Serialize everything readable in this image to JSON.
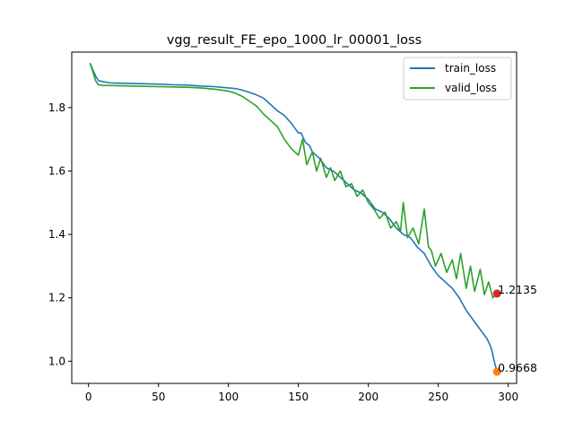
{
  "chart_data": {
    "type": "line",
    "title": "vgg_result_FE_epo_1000_lr_00001_loss",
    "xlabel": "",
    "ylabel": "",
    "xlim": [
      -12,
      306
    ],
    "ylim": [
      0.93,
      1.975
    ],
    "xticks": [
      0,
      50,
      100,
      150,
      200,
      250,
      300
    ],
    "yticks": [
      1.0,
      1.2,
      1.4,
      1.6,
      1.8
    ],
    "ytick_labels": [
      "1.0",
      "1.2",
      "1.4",
      "1.6",
      "1.8"
    ],
    "legend": {
      "position": "top-right",
      "entries": [
        "train_loss",
        "valid_loss"
      ]
    },
    "colors": {
      "train_loss": "#1f77b4",
      "valid_loss": "#2ca02c",
      "train_marker": "#ff7f0e",
      "valid_marker": "#d62728"
    },
    "series": [
      {
        "name": "train_loss",
        "color": "#1f77b4",
        "x": [
          1,
          3,
          5,
          7,
          10,
          15,
          20,
          30,
          40,
          50,
          60,
          70,
          80,
          90,
          100,
          105,
          110,
          115,
          120,
          125,
          130,
          135,
          140,
          145,
          150,
          152,
          155,
          158,
          160,
          165,
          170,
          175,
          180,
          185,
          190,
          195,
          200,
          205,
          210,
          215,
          220,
          225,
          230,
          235,
          240,
          245,
          250,
          255,
          260,
          265,
          270,
          275,
          280,
          285,
          288,
          290,
          292
        ],
        "y": [
          1.94,
          1.92,
          1.9,
          1.885,
          1.882,
          1.878,
          1.877,
          1.876,
          1.875,
          1.874,
          1.872,
          1.871,
          1.868,
          1.866,
          1.862,
          1.86,
          1.855,
          1.848,
          1.84,
          1.83,
          1.81,
          1.79,
          1.775,
          1.75,
          1.72,
          1.72,
          1.69,
          1.68,
          1.66,
          1.64,
          1.61,
          1.6,
          1.58,
          1.56,
          1.54,
          1.53,
          1.51,
          1.48,
          1.47,
          1.45,
          1.42,
          1.4,
          1.39,
          1.36,
          1.34,
          1.3,
          1.27,
          1.25,
          1.23,
          1.2,
          1.16,
          1.13,
          1.1,
          1.07,
          1.04,
          1.0,
          0.9668
        ]
      },
      {
        "name": "valid_loss",
        "color": "#2ca02c",
        "x": [
          1,
          3,
          5,
          7,
          10,
          20,
          30,
          40,
          50,
          60,
          70,
          80,
          90,
          100,
          105,
          110,
          115,
          120,
          125,
          130,
          135,
          140,
          145,
          150,
          153,
          156,
          160,
          163,
          166,
          170,
          173,
          176,
          180,
          184,
          188,
          192,
          196,
          200,
          204,
          208,
          212,
          216,
          220,
          223,
          225,
          228,
          232,
          236,
          240,
          243,
          245,
          248,
          252,
          256,
          260,
          263,
          266,
          270,
          273,
          276,
          280,
          283,
          286,
          289,
          292
        ],
        "y": [
          1.94,
          1.915,
          1.885,
          1.872,
          1.87,
          1.869,
          1.868,
          1.867,
          1.866,
          1.865,
          1.864,
          1.862,
          1.858,
          1.852,
          1.845,
          1.835,
          1.82,
          1.805,
          1.78,
          1.76,
          1.74,
          1.7,
          1.67,
          1.65,
          1.7,
          1.62,
          1.66,
          1.6,
          1.64,
          1.58,
          1.61,
          1.57,
          1.6,
          1.55,
          1.56,
          1.52,
          1.54,
          1.5,
          1.48,
          1.45,
          1.47,
          1.42,
          1.44,
          1.41,
          1.5,
          1.39,
          1.42,
          1.37,
          1.48,
          1.36,
          1.35,
          1.3,
          1.34,
          1.28,
          1.32,
          1.26,
          1.34,
          1.23,
          1.3,
          1.22,
          1.29,
          1.21,
          1.25,
          1.2,
          1.2135
        ]
      }
    ],
    "markers": [
      {
        "series": "valid_loss",
        "x": 292,
        "y": 1.2135,
        "label": "1.2135",
        "color": "#d62728"
      },
      {
        "series": "train_loss",
        "x": 292,
        "y": 0.9668,
        "label": "0.9668",
        "color": "#ff7f0e"
      }
    ]
  }
}
